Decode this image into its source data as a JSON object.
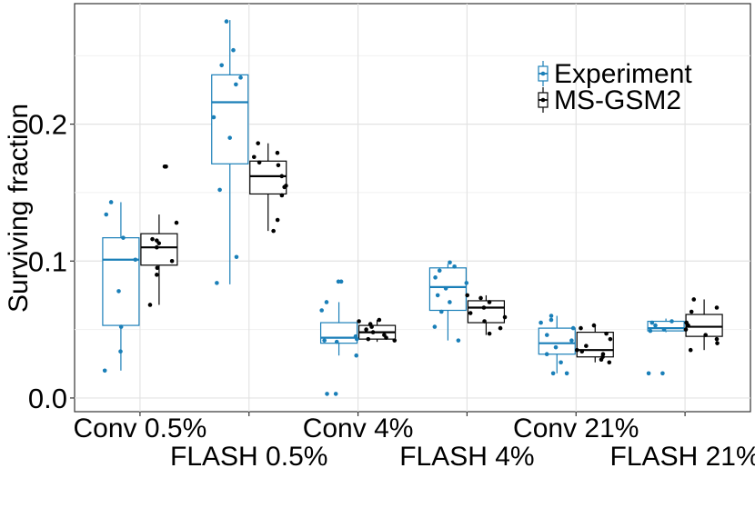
{
  "chart_data": {
    "type": "box",
    "title": "",
    "xlabel": "",
    "ylabel": "Surviving fraction",
    "ylim": [
      -0.01,
      0.288
    ],
    "y_ticks": [
      0.0,
      0.1,
      0.2
    ],
    "y_tick_labels": [
      "0.0",
      "0.1",
      "0.2"
    ],
    "grid": true,
    "legend_position": "top-right",
    "categories": [
      "Conv 0.5%",
      "FLASH 0.5%",
      "Conv 4%",
      "FLASH 4%",
      "Conv 21%",
      "FLASH 21%"
    ],
    "series": [
      {
        "name": "Experiment",
        "color": "#1a7fb8",
        "boxes": [
          {
            "q1": 0.053,
            "median": 0.101,
            "q3": 0.117,
            "whisker_low": 0.02,
            "whisker_high": 0.143
          },
          {
            "q1": 0.171,
            "median": 0.216,
            "q3": 0.236,
            "whisker_low": 0.083,
            "whisker_high": 0.276
          },
          {
            "q1": 0.04,
            "median": 0.044,
            "q3": 0.055,
            "whisker_low": 0.031,
            "whisker_high": 0.07
          },
          {
            "q1": 0.064,
            "median": 0.081,
            "q3": 0.095,
            "whisker_low": 0.042,
            "whisker_high": 0.098
          },
          {
            "q1": 0.032,
            "median": 0.04,
            "q3": 0.051,
            "whisker_low": 0.018,
            "whisker_high": 0.06
          },
          {
            "q1": 0.049,
            "median": 0.051,
            "q3": 0.056,
            "whisker_low": 0.048,
            "whisker_high": 0.058
          }
        ],
        "points": [
          [
            0.034,
            0.117,
            0.134,
            0.143,
            0.078,
            0.052,
            0.02,
            0.101
          ],
          [
            0.254,
            0.275,
            0.243,
            0.234,
            0.229,
            0.205,
            0.19,
            0.152,
            0.103,
            0.084
          ],
          [
            0.085,
            0.085,
            0.07,
            0.064,
            0.045,
            0.043,
            0.042,
            0.041,
            0.031,
            0.003,
            0.003
          ],
          [
            0.099,
            0.096,
            0.093,
            0.088,
            0.084,
            0.08,
            0.075,
            0.07,
            0.063,
            0.052,
            0.042
          ],
          [
            0.06,
            0.057,
            0.055,
            0.051,
            0.046,
            0.042,
            0.037,
            0.032,
            0.026,
            0.018,
            0.018
          ],
          [
            0.056,
            0.055,
            0.053,
            0.05,
            0.049,
            0.018,
            0.018
          ]
        ]
      },
      {
        "name": "MS-GSM2",
        "color": "#000000",
        "boxes": [
          {
            "q1": 0.097,
            "median": 0.11,
            "q3": 0.12,
            "whisker_low": 0.068,
            "whisker_high": 0.134
          },
          {
            "q1": 0.149,
            "median": 0.162,
            "q3": 0.173,
            "whisker_low": 0.122,
            "whisker_high": 0.186
          },
          {
            "q1": 0.043,
            "median": 0.048,
            "q3": 0.053,
            "whisker_low": 0.041,
            "whisker_high": 0.057
          },
          {
            "q1": 0.055,
            "median": 0.066,
            "q3": 0.071,
            "whisker_low": 0.046,
            "whisker_high": 0.075
          },
          {
            "q1": 0.03,
            "median": 0.035,
            "q3": 0.048,
            "whisker_low": 0.026,
            "whisker_high": 0.053
          },
          {
            "q1": 0.045,
            "median": 0.052,
            "q3": 0.061,
            "whisker_low": 0.035,
            "whisker_high": 0.072
          }
        ],
        "points": [
          [
            0.169,
            0.169,
            0.128,
            0.116,
            0.115,
            0.113,
            0.11,
            0.1,
            0.095,
            0.09,
            0.068
          ],
          [
            0.186,
            0.179,
            0.176,
            0.172,
            0.17,
            0.162,
            0.155,
            0.154,
            0.148,
            0.13,
            0.122
          ],
          [
            0.057,
            0.056,
            0.054,
            0.052,
            0.05,
            0.048,
            0.046,
            0.044,
            0.043,
            0.042
          ],
          [
            0.075,
            0.073,
            0.07,
            0.066,
            0.062,
            0.059,
            0.056,
            0.051,
            0.047
          ],
          [
            0.053,
            0.051,
            0.047,
            0.043,
            0.038,
            0.035,
            0.034,
            0.032,
            0.03,
            0.028,
            0.026
          ],
          [
            0.072,
            0.066,
            0.063,
            0.055,
            0.053,
            0.05,
            0.046,
            0.043,
            0.04,
            0.035
          ]
        ]
      }
    ]
  }
}
